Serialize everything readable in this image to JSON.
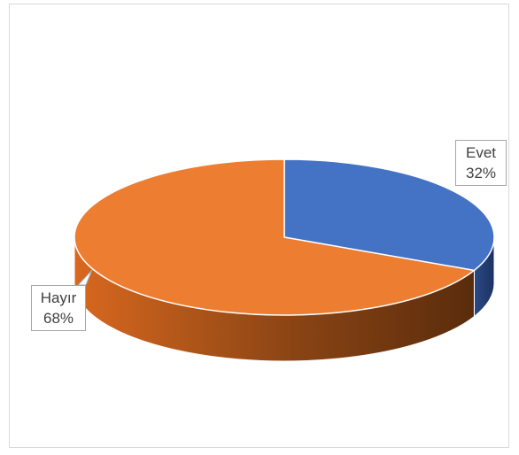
{
  "chart_data": {
    "type": "pie",
    "style": "3d",
    "labels": [
      "Evet",
      "Hayır"
    ],
    "values": [
      32,
      68
    ],
    "value_labels": [
      "32%",
      "68%"
    ],
    "colors": [
      "#4472c4",
      "#ed7d31"
    ],
    "colors_side": [
      "#2f5597",
      "#c55a11"
    ],
    "legend": "none",
    "data_label_style": "callout"
  }
}
